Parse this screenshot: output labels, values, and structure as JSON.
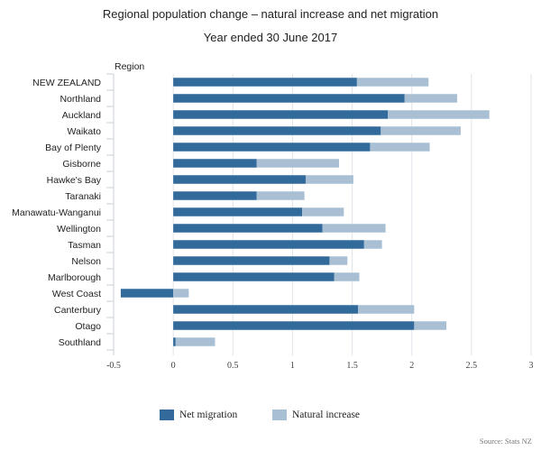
{
  "chart_data": {
    "type": "bar",
    "orientation": "horizontal",
    "stacked": true,
    "title": "Regional population change – natural increase and net migration",
    "subtitle": "Year ended 30 June 2017",
    "ylabel": "Region",
    "xlabel": "",
    "xlim": [
      -0.5,
      3
    ],
    "xticks": [
      "-0.5",
      "0",
      "0.5",
      "1",
      "1.5",
      "2",
      "2.5",
      "3"
    ],
    "grid": true,
    "legend_position": "bottom",
    "source": "Source: Stats NZ",
    "categories": [
      "NEW ZEALAND",
      "Northland",
      "Auckland",
      "Waikato",
      "Bay of Plenty",
      "Gisborne",
      "Hawke's Bay",
      "Taranaki",
      "Manawatu-Wanganui",
      "Wellington",
      "Tasman",
      "Nelson",
      "Marlborough",
      "West Coast",
      "Canterbury",
      "Otago",
      "Southland"
    ],
    "series": [
      {
        "name": "Net migration",
        "color": "#336a9c",
        "values": [
          1.54,
          1.94,
          1.8,
          1.74,
          1.65,
          0.7,
          1.11,
          0.7,
          1.08,
          1.25,
          1.6,
          1.31,
          1.35,
          -0.44,
          1.55,
          2.02,
          0.02
        ]
      },
      {
        "name": "Natural increase",
        "color": "#a9bfd4",
        "values": [
          0.6,
          0.44,
          0.85,
          0.67,
          0.5,
          0.69,
          0.4,
          0.4,
          0.35,
          0.53,
          0.15,
          0.15,
          0.21,
          0.13,
          0.47,
          0.27,
          0.33
        ]
      }
    ]
  }
}
